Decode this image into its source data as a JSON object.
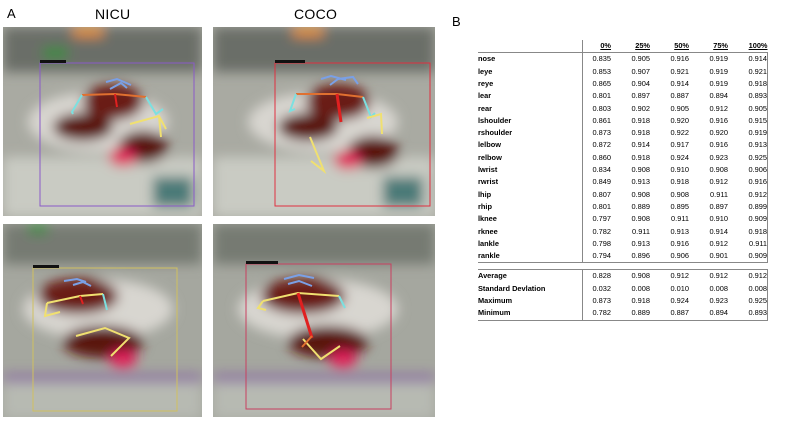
{
  "panel_a": {
    "letter": "A",
    "columns": [
      "NICU",
      "COCO"
    ]
  },
  "panel_b": {
    "letter": "B",
    "headers": [
      "0%",
      "25%",
      "50%",
      "75%",
      "100%"
    ],
    "keypoints": [
      {
        "label": "nose",
        "values": [
          "0.835",
          "0.905",
          "0.916",
          "0.919",
          "0.914"
        ]
      },
      {
        "label": "leye",
        "values": [
          "0.853",
          "0.907",
          "0.921",
          "0.919",
          "0.921"
        ]
      },
      {
        "label": "reye",
        "values": [
          "0.865",
          "0.904",
          "0.914",
          "0.919",
          "0.918"
        ]
      },
      {
        "label": "lear",
        "values": [
          "0.801",
          "0.897",
          "0.887",
          "0.894",
          "0.893"
        ]
      },
      {
        "label": "rear",
        "values": [
          "0.803",
          "0.902",
          "0.905",
          "0.912",
          "0.905"
        ]
      },
      {
        "label": "lshoulder",
        "values": [
          "0.861",
          "0.918",
          "0.920",
          "0.916",
          "0.915"
        ]
      },
      {
        "label": "rshoulder",
        "values": [
          "0.873",
          "0.918",
          "0.922",
          "0.920",
          "0.919"
        ]
      },
      {
        "label": "lelbow",
        "values": [
          "0.872",
          "0.914",
          "0.917",
          "0.916",
          "0.913"
        ]
      },
      {
        "label": "relbow",
        "values": [
          "0.860",
          "0.918",
          "0.924",
          "0.923",
          "0.925"
        ]
      },
      {
        "label": "lwrist",
        "values": [
          "0.834",
          "0.908",
          "0.910",
          "0.908",
          "0.906"
        ]
      },
      {
        "label": "rwrist",
        "values": [
          "0.849",
          "0.913",
          "0.918",
          "0.912",
          "0.916"
        ]
      },
      {
        "label": "lhip",
        "values": [
          "0.807",
          "0.908",
          "0.908",
          "0.911",
          "0.912"
        ]
      },
      {
        "label": "rhip",
        "values": [
          "0.801",
          "0.889",
          "0.895",
          "0.897",
          "0.899"
        ]
      },
      {
        "label": "lknee",
        "values": [
          "0.797",
          "0.908",
          "0.911",
          "0.910",
          "0.909"
        ]
      },
      {
        "label": "rknee",
        "values": [
          "0.782",
          "0.911",
          "0.913",
          "0.914",
          "0.918"
        ]
      },
      {
        "label": "lankle",
        "values": [
          "0.798",
          "0.913",
          "0.916",
          "0.912",
          "0.911"
        ]
      },
      {
        "label": "rankle",
        "values": [
          "0.794",
          "0.896",
          "0.906",
          "0.901",
          "0.909"
        ]
      }
    ],
    "summary": [
      {
        "label": "Average",
        "values": [
          "0.828",
          "0.908",
          "0.912",
          "0.912",
          "0.912"
        ]
      },
      {
        "label": "Standard Devlation",
        "values": [
          "0.032",
          "0.008",
          "0.010",
          "0.008",
          "0.008"
        ]
      },
      {
        "label": "Maximum",
        "values": [
          "0.873",
          "0.918",
          "0.924",
          "0.923",
          "0.925"
        ]
      },
      {
        "label": "Minimum",
        "values": [
          "0.782",
          "0.889",
          "0.887",
          "0.894",
          "0.893"
        ]
      }
    ]
  },
  "colors": {
    "skeleton_head": "#7aa0e6",
    "skeleton_arm": "#f0e070",
    "skeleton_torso": "#e07030",
    "skeleton_spine": "#e02020",
    "box_nicu_top": "#8a5bc8",
    "box_coco_top": "#e03040",
    "box_nicu_bottom": "#d0c060",
    "box_coco_bottom": "#c84060"
  }
}
